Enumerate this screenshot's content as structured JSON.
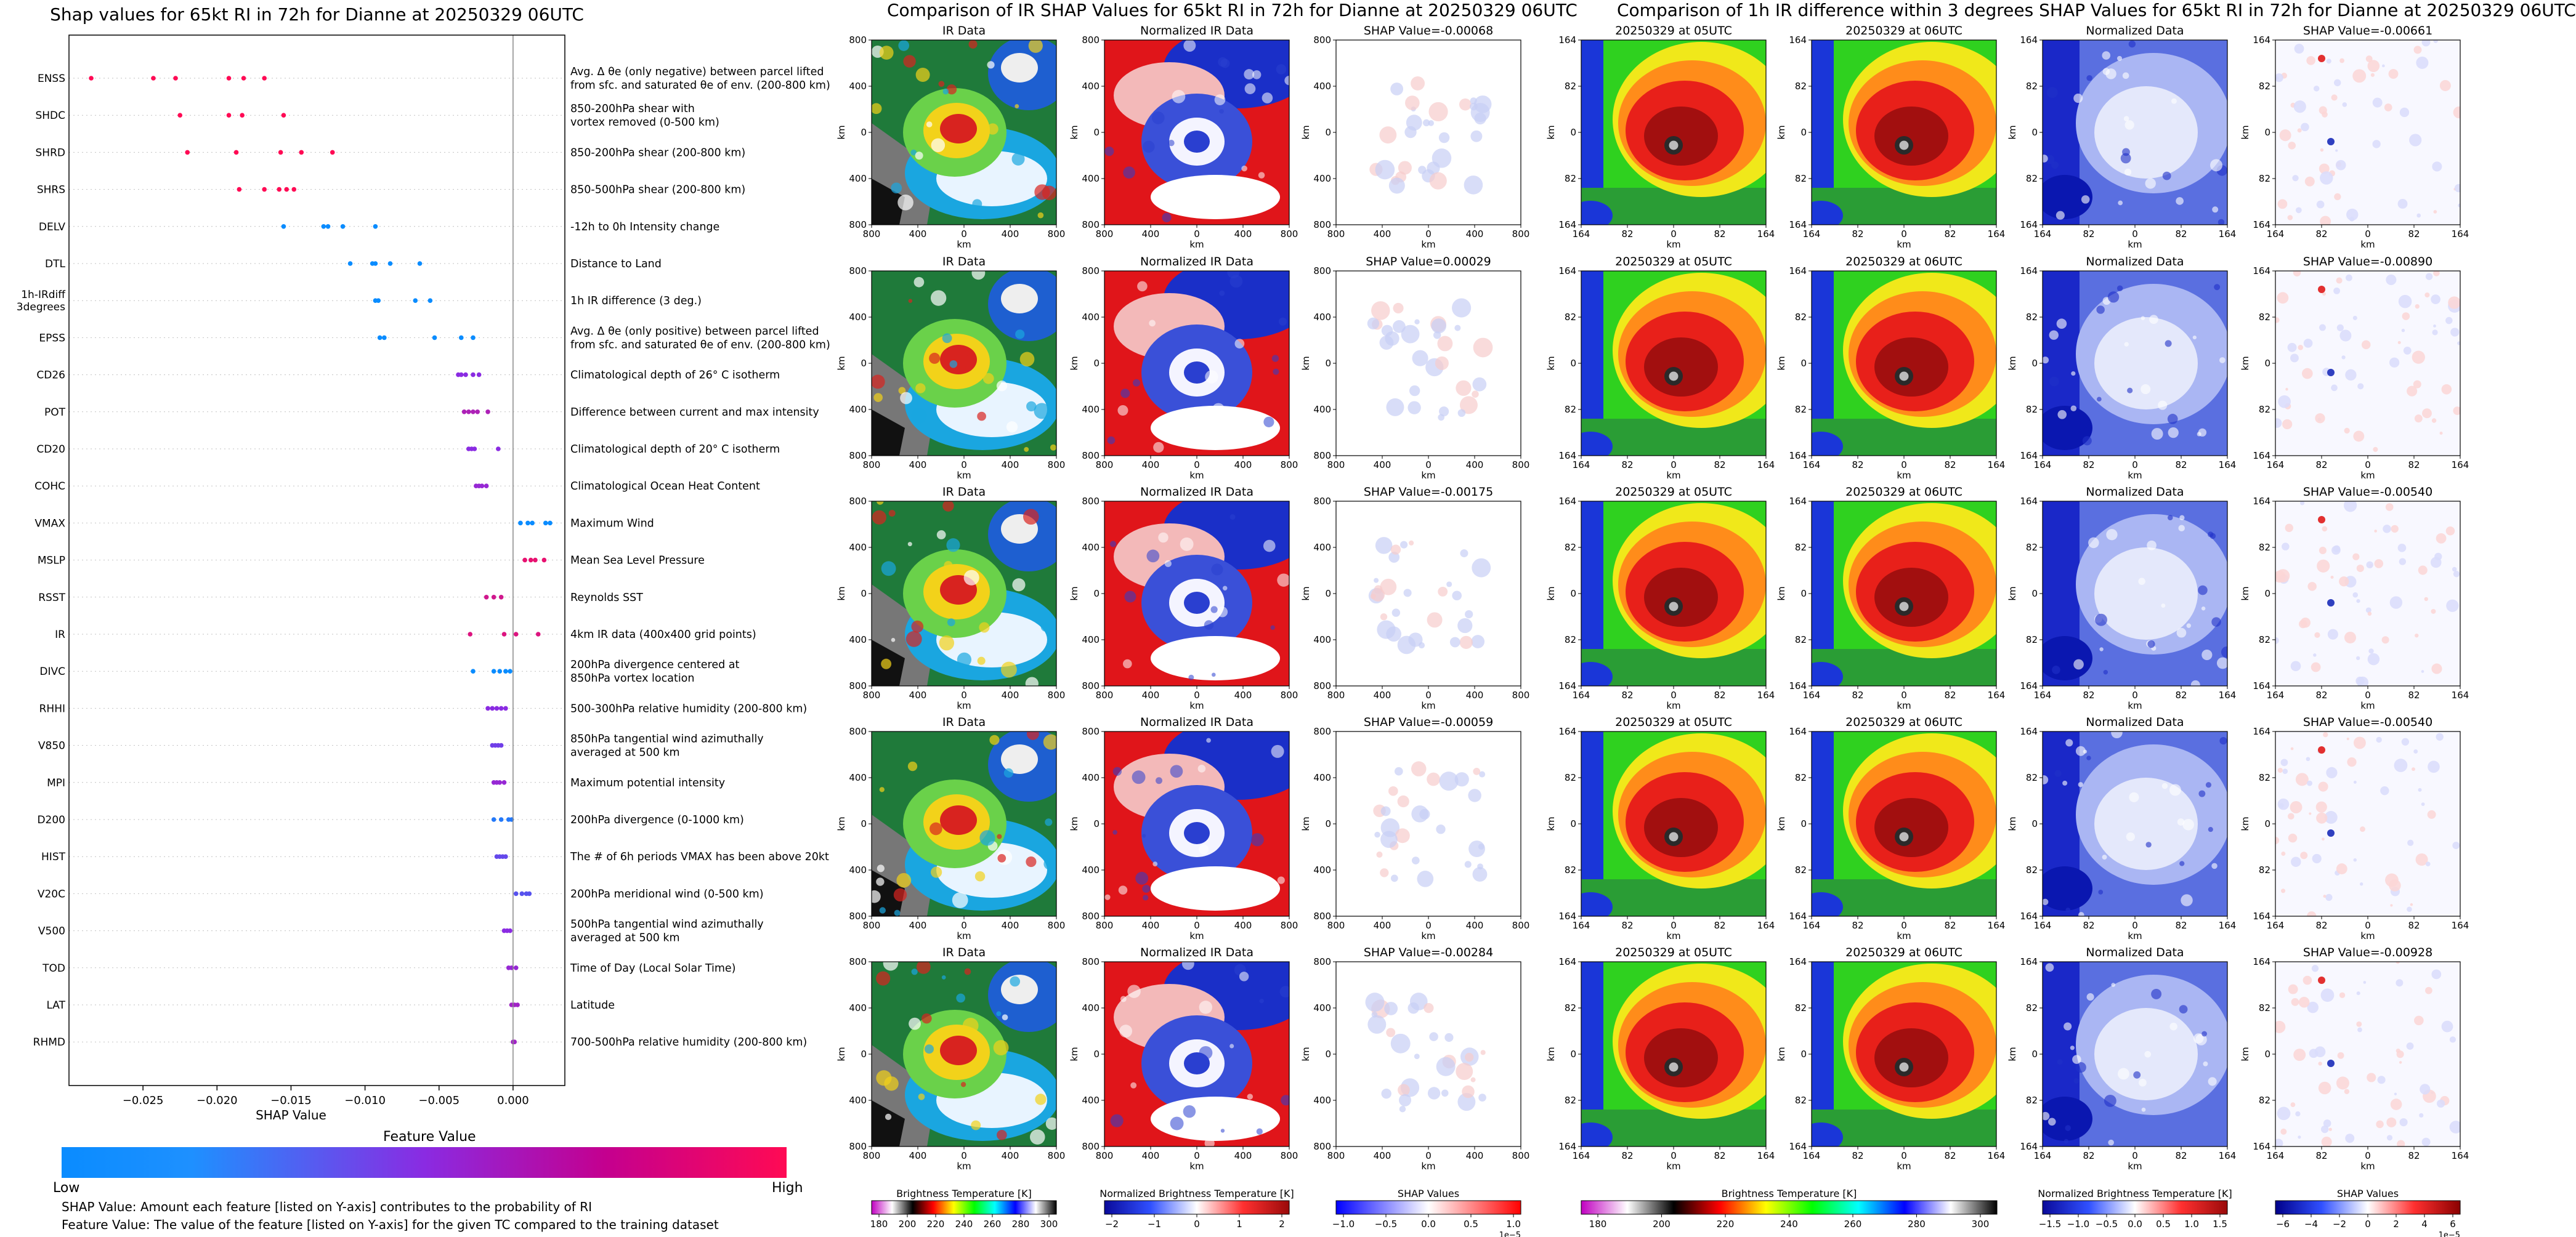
{
  "summary": {
    "title": "Shap values for 65kt RI in 72h for Dianne at 20250329 06UTC",
    "feature_value_title": "Feature Value",
    "low_label": "Low",
    "high_label": "High",
    "note1": "SHAP Value: Amount each feature [listed on Y-axis] contributes to the probability of RI",
    "note2": "Feature Value: The value of the feature [listed on Y-axis] for the given TC compared to the training dataset"
  },
  "colors": {
    "low": "#0a8cff",
    "mid": "#8a2be2",
    "high": "#ff0a54"
  },
  "chart_data": [
    {
      "type": "scatter",
      "title": "Shap values for 65kt RI in 72h for Dianne at 20250329 06UTC",
      "xlabel": "SHAP Value",
      "xlim": [
        -0.03,
        0.0035
      ],
      "xticks": [
        -0.025,
        -0.02,
        -0.015,
        -0.01,
        -0.005,
        0.0
      ],
      "xtick_labels": [
        "−0.025",
        "−0.020",
        "−0.015",
        "−0.010",
        "−0.005",
        "0.000"
      ],
      "features": [
        {
          "name": "ENSS",
          "desc": "Avg. Δ θe (only negative) between parcel lifted|from sfc. and saturated θe of env. (200-800 km)",
          "values": [
            -0.0285,
            -0.0243,
            -0.0228,
            -0.0192,
            -0.0182,
            -0.0168
          ],
          "fv": [
            1,
            1,
            1,
            1,
            1,
            1
          ]
        },
        {
          "name": "SHDC",
          "desc": "850-200hPa shear with|vortex removed (0-500 km)",
          "values": [
            -0.0225,
            -0.0192,
            -0.0183,
            -0.0155
          ],
          "fv": [
            1,
            1,
            1,
            1
          ]
        },
        {
          "name": "SHRD",
          "desc": "850-200hPa shear (200-800 km)",
          "values": [
            -0.022,
            -0.0187,
            -0.0157,
            -0.0143,
            -0.0122
          ],
          "fv": [
            1,
            1,
            1,
            1,
            1
          ]
        },
        {
          "name": "SHRS",
          "desc": "850-500hPa shear (200-800 km)",
          "values": [
            -0.0185,
            -0.0168,
            -0.0158,
            -0.0153,
            -0.0148
          ],
          "fv": [
            1,
            1,
            1,
            1,
            1
          ]
        },
        {
          "name": "DELV",
          "desc": "-12h to 0h Intensity change",
          "values": [
            -0.0155,
            -0.0128,
            -0.0125,
            -0.0115,
            -0.0093
          ],
          "fv": [
            0,
            0,
            0,
            0,
            0
          ]
        },
        {
          "name": "DTL",
          "desc": "Distance to Land",
          "values": [
            -0.011,
            -0.0095,
            -0.0093,
            -0.0083,
            -0.0063
          ],
          "fv": [
            0,
            0,
            0,
            0,
            0
          ]
        },
        {
          "name": "1h-IRdiff|3degrees",
          "desc": "1h IR difference (3 deg.)",
          "values": [
            -0.0093,
            -0.0091,
            -0.0066,
            -0.0056
          ],
          "fv": [
            0,
            0,
            0,
            0
          ]
        },
        {
          "name": "EPSS",
          "desc": "Avg. Δ θe (only positive) between parcel lifted|from sfc. and saturated θe of env. (200-800 km)",
          "values": [
            -0.009,
            -0.0087,
            -0.0053,
            -0.0035,
            -0.0027
          ],
          "fv": [
            0,
            0,
            0,
            0,
            0
          ]
        },
        {
          "name": "CD26",
          "desc": "Climatological depth of 26° C isotherm",
          "values": [
            -0.0037,
            -0.0035,
            -0.0032,
            -0.0027,
            -0.0023
          ],
          "fv": [
            0.5,
            0.5,
            0.5,
            0.5,
            0.5
          ]
        },
        {
          "name": "POT",
          "desc": "Difference between current and max intensity",
          "values": [
            -0.0033,
            -0.003,
            -0.0027,
            -0.0024,
            -0.0017
          ],
          "fv": [
            0.65,
            0.65,
            0.65,
            0.65,
            0.65
          ]
        },
        {
          "name": "CD20",
          "desc": "Climatological depth of 20° C isotherm",
          "values": [
            -0.003,
            -0.0028,
            -0.0026,
            -0.001
          ],
          "fv": [
            0.5,
            0.5,
            0.5,
            0.5
          ]
        },
        {
          "name": "COHC",
          "desc": "Climatological Ocean Heat Content",
          "values": [
            -0.0025,
            -0.0023,
            -0.0021,
            -0.0018
          ],
          "fv": [
            0.55,
            0.55,
            0.55,
            0.55
          ]
        },
        {
          "name": "VMAX",
          "desc": "Maximum Wind",
          "values": [
            0.0005,
            0.001,
            0.0013,
            0.0022,
            0.0025
          ],
          "fv": [
            0,
            0,
            0,
            0,
            0
          ]
        },
        {
          "name": "MSLP",
          "desc": "Mean Sea Level Pressure",
          "values": [
            0.0008,
            0.0012,
            0.0015,
            0.0021
          ],
          "fv": [
            0.9,
            0.9,
            0.9,
            0.9
          ]
        },
        {
          "name": "RSST",
          "desc": "Reynolds SST",
          "values": [
            -0.0018,
            -0.0013,
            -0.0008
          ],
          "fv": [
            0.8,
            0.8,
            0.8
          ]
        },
        {
          "name": "IR",
          "desc": "4km IR data (400x400 grid points)",
          "values": [
            -0.0029,
            -0.0006,
            0.0002,
            0.0017
          ],
          "fv": [
            0.85,
            0.85,
            0.85,
            0.85
          ]
        },
        {
          "name": "DIVC",
          "desc": "200hPa divergence centered at|850hPa vortex location",
          "values": [
            -0.0027,
            -0.0013,
            -0.0009,
            -0.0005,
            -0.0002
          ],
          "fv": [
            0,
            0,
            0,
            0,
            0
          ]
        },
        {
          "name": "RHHI",
          "desc": "500-300hPa relative humidity (200-800 km)",
          "values": [
            -0.0017,
            -0.0014,
            -0.0011,
            -0.0008,
            -0.0005
          ],
          "fv": [
            0.5,
            0.5,
            0.5,
            0.5,
            0.5
          ]
        },
        {
          "name": "V850",
          "desc": "850hPa tangential wind azimuthally|averaged at 500 km",
          "values": [
            -0.0014,
            -0.0012,
            -0.001,
            -0.0008
          ],
          "fv": [
            0.4,
            0.4,
            0.4,
            0.4
          ]
        },
        {
          "name": "MPI",
          "desc": "Maximum potential intensity",
          "values": [
            -0.0013,
            -0.0011,
            -0.0009,
            -0.0006
          ],
          "fv": [
            0.55,
            0.55,
            0.55,
            0.55
          ]
        },
        {
          "name": "D200",
          "desc": "200hPa divergence (0-1000 km)",
          "values": [
            -0.0013,
            -0.0008,
            -0.0003,
            -0.0001
          ],
          "fv": [
            0.1,
            0.1,
            0.1,
            0.1
          ]
        },
        {
          "name": "HIST",
          "desc": "The # of 6h periods VMAX has been above 20kt",
          "values": [
            -0.0011,
            -0.0009,
            -0.0007,
            -0.0005
          ],
          "fv": [
            0.35,
            0.35,
            0.35,
            0.35
          ]
        },
        {
          "name": "V20C",
          "desc": "200hPa meridional wind (0-500 km)",
          "values": [
            0.0002,
            0.0006,
            0.0009,
            0.0011
          ],
          "fv": [
            0.3,
            0.3,
            0.3,
            0.3
          ]
        },
        {
          "name": "V500",
          "desc": "500hPa tangential wind azimuthally|averaged at 500 km",
          "values": [
            -0.0006,
            -0.0004,
            -0.0002
          ],
          "fv": [
            0.5,
            0.5,
            0.5
          ]
        },
        {
          "name": "TOD",
          "desc": "Time of Day (Local Solar Time)",
          "values": [
            -0.0003,
            -0.0001,
            0.0002
          ],
          "fv": [
            0.55,
            0.55,
            0.55
          ]
        },
        {
          "name": "LAT",
          "desc": "Latitude",
          "values": [
            -0.0001,
            0.0001,
            0.0003
          ],
          "fv": [
            0.6,
            0.6,
            0.6
          ]
        },
        {
          "name": "RHMD",
          "desc": "700-500hPa relative humidity (200-800 km)",
          "values": [
            0.0,
            0.0001
          ],
          "fv": [
            0.6,
            0.6
          ]
        }
      ]
    },
    {
      "type": "heatmap",
      "title": "Comparison of IR SHAP Values for 65kt RI in 72h for Dianne at 20250329 06UTC",
      "column_titles": [
        "IR Data",
        "Normalized IR Data"
      ],
      "shap_titles": [
        "SHAP Value=-0.00068",
        "SHAP Value=0.00029",
        "SHAP Value=-0.00175",
        "SHAP Value=-0.00059",
        "SHAP Value=-0.00284"
      ],
      "xticks": [
        "800",
        "400",
        "0",
        "400",
        "800"
      ],
      "yticks": [
        "800",
        "400",
        "0",
        "400",
        "800"
      ],
      "xlabel": "km",
      "ylabel": "km",
      "colorbars": [
        {
          "label": "Brightness Temperature [K]",
          "ticks": [
            "180",
            "200",
            "220",
            "240",
            "260",
            "280",
            "300"
          ]
        },
        {
          "label": "Normalized Brightness Temperature [K]",
          "ticks": [
            "−2",
            "−1",
            "0",
            "1",
            "2"
          ]
        },
        {
          "label": "SHAP Values",
          "ticks": [
            "−1.0",
            "−0.5",
            "0.0",
            "0.5",
            "1.0"
          ],
          "exponent": "1e−5"
        }
      ]
    },
    {
      "type": "heatmap",
      "title": "Comparison of 1h IR difference within 3 degrees SHAP Values for 65kt RI in 72h for Dianne at 20250329 06UTC",
      "column_titles": [
        "20250329 at 05UTC",
        "20250329 at 06UTC",
        "Normalized Data"
      ],
      "shap_titles": [
        "SHAP Value=-0.00661",
        "SHAP Value=-0.00890",
        "SHAP Value=-0.00540",
        "SHAP Value=-0.00540",
        "SHAP Value=-0.00928"
      ],
      "xticks": [
        "164",
        "82",
        "0",
        "82",
        "164"
      ],
      "yticks": [
        "164",
        "82",
        "0",
        "82",
        "164"
      ],
      "xlabel": "km",
      "ylabel": "km",
      "colorbars": [
        {
          "label": "Brightness Temperature [K]",
          "ticks": [
            "180",
            "200",
            "220",
            "240",
            "260",
            "280",
            "300"
          ]
        },
        {
          "label": "Normalized Brightness Temperature [K]",
          "ticks": [
            "−1.5",
            "−1.0",
            "−0.5",
            "0.0",
            "0.5",
            "1.0",
            "1.5"
          ]
        },
        {
          "label": "SHAP Values",
          "ticks": [
            "−6",
            "−4",
            "−2",
            "0",
            "2",
            "4",
            "6"
          ],
          "exponent": "1e−5"
        }
      ]
    }
  ]
}
